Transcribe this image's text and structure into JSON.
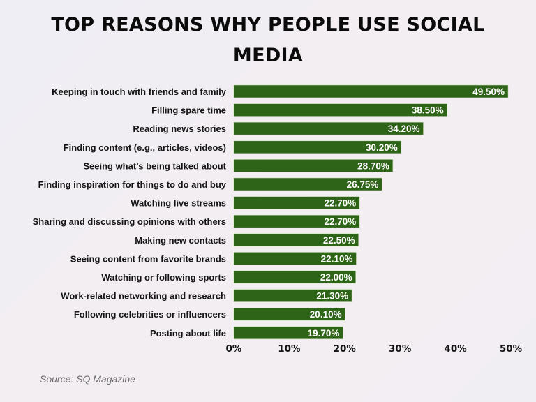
{
  "chart_data": {
    "type": "bar",
    "orientation": "horizontal",
    "title": "TOP REASONS WHY PEOPLE USE SOCIAL MEDIA",
    "categories": [
      "Keeping in touch with friends and family",
      "Filling spare time",
      "Reading news stories",
      "Finding content (e.g., articles, videos)",
      "Seeing what’s being talked about",
      "Finding inspiration for things to do and buy",
      "Watching live streams",
      "Sharing and discussing opinions with others",
      "Making new contacts",
      "Seeing content from favorite brands",
      "Watching or following sports",
      "Work-related networking and research",
      "Following celebrities or influencers",
      "Posting about life"
    ],
    "values": [
      49.5,
      38.5,
      34.2,
      30.2,
      28.7,
      26.75,
      22.7,
      22.7,
      22.5,
      22.1,
      22.0,
      21.3,
      20.1,
      19.7
    ],
    "data_labels": [
      "49.50%",
      "38.50%",
      "34.20%",
      "30.20%",
      "28.70%",
      "26.75%",
      "22.70%",
      "22.70%",
      "22.50%",
      "22.10%",
      "22.00%",
      "21.30%",
      "20.10%",
      "19.70%"
    ],
    "xlim": [
      0,
      50
    ],
    "x_ticks": [
      "0%",
      "10%",
      "20%",
      "30%",
      "40%",
      "50%"
    ],
    "x_tick_values": [
      0,
      10,
      20,
      30,
      40,
      50
    ],
    "grid": false,
    "bar_color": "#2e6417",
    "xlabel": "",
    "ylabel": ""
  },
  "source": "Source: SQ Magazine"
}
